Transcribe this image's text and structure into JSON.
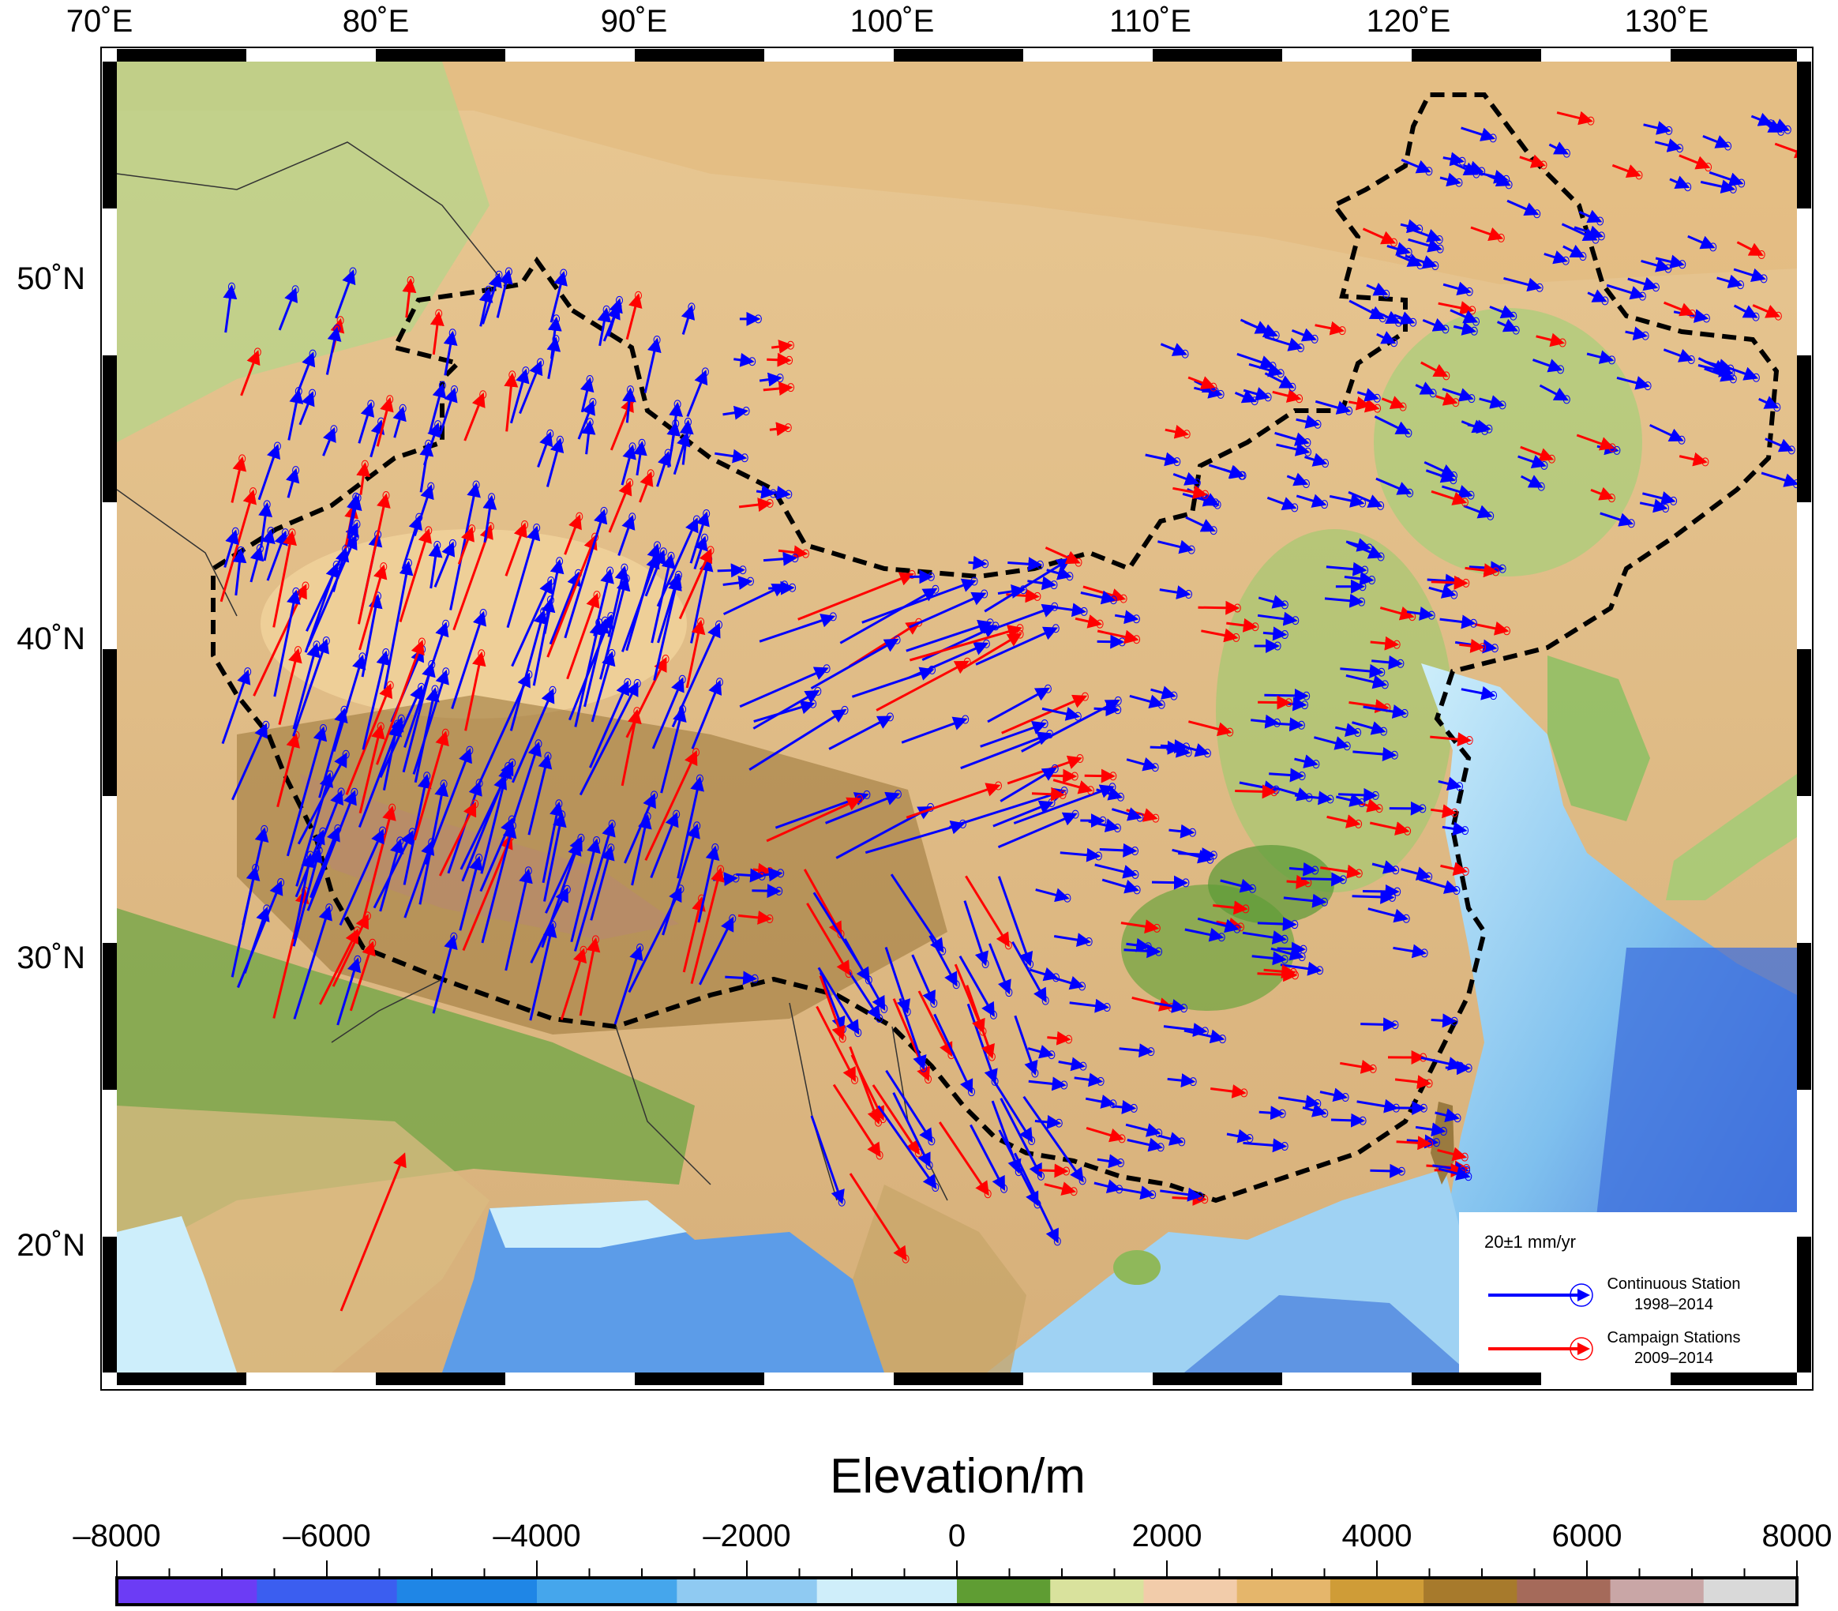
{
  "map": {
    "lon_labels": [
      "70˚E",
      "80˚E",
      "90˚E",
      "100˚E",
      "110˚E",
      "120˚E",
      "130˚E"
    ],
    "lat_labels": [
      "50˚N",
      "40˚N",
      "30˚N",
      "20˚N"
    ],
    "lon_range": [
      70,
      135
    ],
    "lat_range": [
      15.5,
      56
    ],
    "vector_colors": {
      "continuous": "#0000ff",
      "campaign": "#ff0000"
    },
    "terrain_colors": {
      "ocean_deep": "#3a66d8",
      "ocean_mid": "#5fa2ea",
      "ocean_shallow": "#cdeefb",
      "lowland": "#5e9e3c",
      "plain": "#a9cf7a",
      "upland": "#e8c792",
      "highland": "#b58a3c",
      "plateau": "#8e6a35"
    }
  },
  "legend": {
    "scale_text": "20±1 mm/yr",
    "continuous_label": "Continuous Station",
    "continuous_years": "1998–2014",
    "campaign_label": "Campaign Stations",
    "campaign_years": "2009–2014"
  },
  "colorbar": {
    "title": "Elevation/m",
    "tick_labels": [
      "–8000",
      "–6000",
      "–4000",
      "–2000",
      "0",
      "2000",
      "4000",
      "6000",
      "8000"
    ],
    "range": [
      -8000,
      8000
    ],
    "colors": [
      "#6c3cf5",
      "#3b5ef0",
      "#1f86e6",
      "#45a6ec",
      "#8fcaf2",
      "#cfeefa",
      "#5f9d33",
      "#d9e29d",
      "#f2ccaa",
      "#e5b66b",
      "#cf9c37",
      "#a77a2c",
      "#a56a5a",
      "#c9a6a6",
      "#d9d9d9"
    ]
  }
}
